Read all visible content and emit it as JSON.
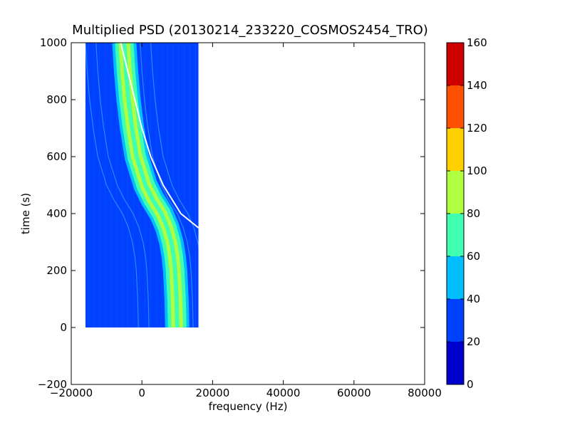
{
  "chart_data": {
    "type": "heatmap",
    "title": "Multiplied PSD (20130214_233220_COSMOS2454_TRO)",
    "xlabel": "frequency (Hz)",
    "ylabel": "time (s)",
    "xlim": [
      -20000,
      80000
    ],
    "ylim": [
      -200,
      1000
    ],
    "xticks": [
      -20000,
      0,
      20000,
      40000,
      60000,
      80000
    ],
    "xtick_labels": [
      "−20000",
      "0",
      "20000",
      "40000",
      "60000",
      "80000"
    ],
    "yticks": [
      -200,
      0,
      200,
      400,
      600,
      800,
      1000
    ],
    "ytick_labels": [
      "−200",
      "0",
      "200",
      "400",
      "600",
      "800",
      "1000"
    ],
    "data_extent": {
      "x": [
        -16000,
        16000
      ],
      "y": [
        0,
        1000
      ]
    },
    "background_level": 30,
    "main_track": {
      "description_points": [
        {
          "t": 1000,
          "f": -5000
        },
        {
          "t": 900,
          "f": -4500
        },
        {
          "t": 800,
          "f": -3800
        },
        {
          "t": 700,
          "f": -2800
        },
        {
          "t": 600,
          "f": -1500
        },
        {
          "t": 500,
          "f": 1000
        },
        {
          "t": 450,
          "f": 3000
        },
        {
          "t": 400,
          "f": 5500
        },
        {
          "t": 350,
          "f": 7200
        },
        {
          "t": 300,
          "f": 8300
        },
        {
          "t": 250,
          "f": 9000
        },
        {
          "t": 200,
          "f": 9400
        },
        {
          "t": 100,
          "f": 9800
        },
        {
          "t": 0,
          "f": 10000
        }
      ],
      "peak_level": 85
    },
    "white_curve": [
      {
        "t": 1000,
        "f": -6000
      },
      {
        "t": 900,
        "f": -4000
      },
      {
        "t": 800,
        "f": -2000
      },
      {
        "t": 700,
        "f": 0
      },
      {
        "t": 600,
        "f": 2500
      },
      {
        "t": 500,
        "f": 6000
      },
      {
        "t": 400,
        "f": 11000
      },
      {
        "t": 350,
        "f": 16000
      }
    ],
    "colorbar": {
      "min": 0,
      "max": 160,
      "ticks": [
        0,
        20,
        40,
        60,
        80,
        100,
        120,
        140,
        160
      ],
      "colors": [
        "#0000cd",
        "#0040ff",
        "#00bfff",
        "#40ffb0",
        "#b0ff40",
        "#ffd000",
        "#ff5000",
        "#cd0000"
      ]
    },
    "grid": false
  }
}
